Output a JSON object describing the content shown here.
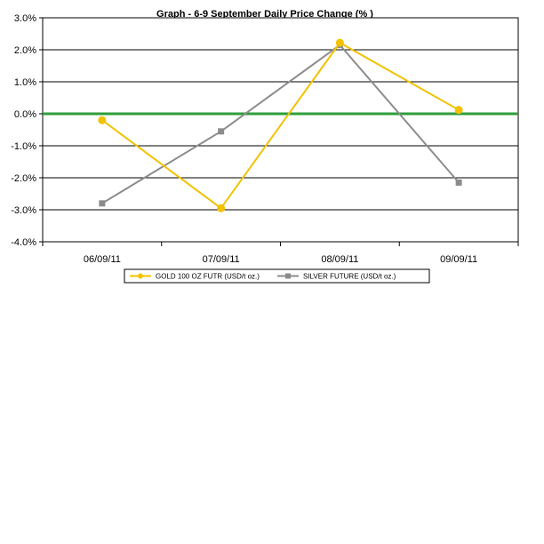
{
  "chart_data": {
    "type": "line",
    "title": "Graph -    6-9 September Daily Price Change (% )",
    "xlabel": "",
    "ylabel": "",
    "categories": [
      "06/09/11",
      "07/09/11",
      "08/09/11",
      "09/09/11"
    ],
    "ylim": [
      -4.0,
      3.0
    ],
    "ytick_step": 1.0,
    "yticks": [
      "3.0%",
      "2.0%",
      "1.0%",
      "0.0%",
      "-1.0%",
      "-2.0%",
      "-3.0%",
      "-4.0%"
    ],
    "grid": true,
    "legend_position": "bottom",
    "zero_line_color": "#2e9e3a",
    "series": [
      {
        "name": "GOLD 100 OZ FUTR (USD/t oz.)",
        "values": [
          -0.2,
          -2.95,
          2.22,
          0.12
        ],
        "color": "#f2c200",
        "marker": "circle"
      },
      {
        "name": "SILVER FUTURE (USD/t oz.)",
        "values": [
          -2.8,
          -0.55,
          2.15,
          -2.15
        ],
        "color": "#8c8c8c",
        "marker": "square"
      }
    ]
  }
}
